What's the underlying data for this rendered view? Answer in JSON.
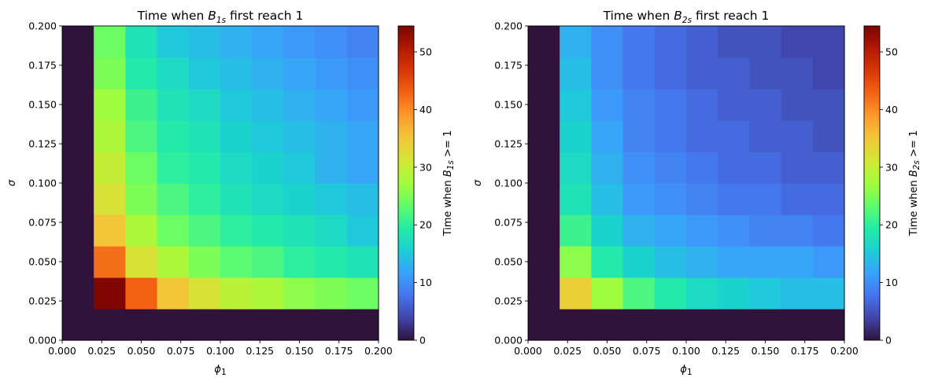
{
  "colormap": "turbo",
  "colorbar_colors": [
    "#30123b",
    "#4145ab",
    "#4675ed",
    "#39a2fc",
    "#1bcfd4",
    "#24eca6",
    "#61fc6c",
    "#a4fc3b",
    "#d1e834",
    "#f3c63a",
    "#fe9b2d",
    "#f36315",
    "#d93806",
    "#b11901",
    "#7a0402"
  ],
  "chart_data": [
    {
      "type": "heatmap",
      "title": "Time when B_1s first reach 1",
      "title_prefix": "Time when ",
      "title_var": "B",
      "title_sub": "1s",
      "title_suffix": " first reach 1",
      "xlabel_var": "ϕ",
      "xlabel_sub": "1",
      "ylabel": "σ",
      "colorbar_label": "Time when B_1s >= 1",
      "colorbar_prefix": "Time when ",
      "colorbar_var": "B",
      "colorbar_sub": "1s",
      "colorbar_suffix": " >= 1",
      "xlim": [
        0,
        0.2
      ],
      "ylim": [
        0,
        0.2
      ],
      "clim": [
        0,
        54.5
      ],
      "x_ticks": [
        "0.000",
        "0.025",
        "0.050",
        "0.075",
        "0.100",
        "0.125",
        "0.150",
        "0.175",
        "0.200"
      ],
      "y_ticks": [
        "0.000",
        "0.025",
        "0.050",
        "0.075",
        "0.100",
        "0.125",
        "0.150",
        "0.175",
        "0.200"
      ],
      "colorbar_ticks": [
        "0",
        "10",
        "20",
        "30",
        "40",
        "50"
      ],
      "cell_size": 0.02,
      "z": [
        [
          0,
          0,
          0,
          0,
          0,
          0,
          0,
          0,
          0,
          0
        ],
        [
          0,
          54,
          43,
          35,
          32,
          29,
          28,
          26,
          25,
          24
        ],
        [
          0,
          42,
          32,
          28,
          25,
          23,
          22,
          20,
          19,
          18
        ],
        [
          0,
          35,
          28,
          24,
          22,
          20,
          19,
          18,
          17,
          15
        ],
        [
          0,
          32,
          25,
          22,
          20,
          18,
          17,
          16,
          15,
          14
        ],
        [
          0,
          30,
          24,
          20,
          19,
          17,
          16,
          15,
          13,
          12
        ],
        [
          0,
          28,
          22,
          19,
          18,
          16,
          15,
          14,
          13,
          12
        ],
        [
          0,
          27,
          21,
          18,
          17,
          15,
          14,
          13,
          12,
          11
        ],
        [
          0,
          25,
          19,
          17,
          15,
          14,
          13,
          12,
          11,
          10
        ],
        [
          0,
          24,
          18,
          15,
          14,
          13,
          12,
          11,
          10,
          9
        ]
      ]
    },
    {
      "type": "heatmap",
      "title": "Time when B_2s first reach 1",
      "title_prefix": "Time when ",
      "title_var": "B",
      "title_sub": "2s",
      "title_suffix": " first reach 1",
      "xlabel_var": "ϕ",
      "xlabel_sub": "1",
      "ylabel": "σ",
      "colorbar_label": "Time when B_2s >= 1",
      "colorbar_prefix": "Time when ",
      "colorbar_var": "B",
      "colorbar_sub": "2s",
      "colorbar_suffix": " >= 1",
      "xlim": [
        0,
        0.2
      ],
      "ylim": [
        0,
        0.2
      ],
      "clim": [
        0,
        54.5
      ],
      "x_ticks": [
        "0.000",
        "0.025",
        "0.050",
        "0.075",
        "0.100",
        "0.125",
        "0.150",
        "0.175",
        "0.200"
      ],
      "y_ticks": [
        "0.000",
        "0.025",
        "0.050",
        "0.075",
        "0.100",
        "0.125",
        "0.150",
        "0.175",
        "0.200"
      ],
      "colorbar_ticks": [
        "0",
        "10",
        "20",
        "30",
        "40",
        "50"
      ],
      "cell_size": 0.02,
      "z": [
        [
          0,
          0,
          0,
          0,
          0,
          0,
          0,
          0,
          0,
          0
        ],
        [
          0,
          34,
          27,
          22,
          19,
          17,
          16,
          15,
          14,
          14
        ],
        [
          0,
          26,
          19,
          16,
          14,
          13,
          12,
          12,
          12,
          11
        ],
        [
          0,
          21,
          16,
          13,
          12,
          11,
          10,
          9,
          9,
          8
        ],
        [
          0,
          18,
          14,
          11,
          10,
          9,
          8,
          8,
          7,
          7
        ],
        [
          0,
          17,
          13,
          10,
          9,
          8,
          7,
          7,
          6,
          6
        ],
        [
          0,
          16,
          12,
          9,
          8,
          7,
          7,
          6,
          6,
          5
        ],
        [
          0,
          15,
          11,
          9,
          8,
          7,
          6,
          6,
          5,
          5
        ],
        [
          0,
          14,
          10,
          8,
          7,
          6,
          6,
          5,
          5,
          4
        ],
        [
          0,
          13,
          10,
          8,
          7,
          6,
          5,
          5,
          4,
          4
        ]
      ]
    }
  ]
}
